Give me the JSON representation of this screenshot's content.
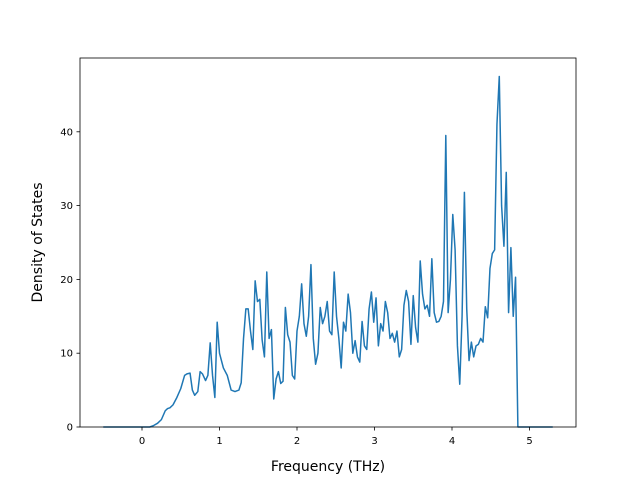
{
  "chart_data": {
    "type": "line",
    "title": "",
    "xlabel": "Frequency (THz)",
    "ylabel": "Density of States",
    "xlim": [
      -0.8,
      5.6
    ],
    "ylim": [
      0,
      50
    ],
    "xticks": [
      0,
      1,
      2,
      3,
      4,
      5
    ],
    "yticks": [
      0,
      10,
      20,
      30,
      40
    ],
    "grid": false,
    "legend": "none",
    "line_color": "#1f77b4",
    "series": [
      {
        "x": [
          -0.5,
          -0.3,
          -0.1,
          0.0,
          0.1,
          0.15,
          0.2,
          0.25,
          0.3,
          0.33,
          0.36,
          0.4,
          0.45,
          0.5,
          0.55,
          0.58,
          0.62,
          0.65,
          0.68,
          0.72,
          0.75,
          0.78,
          0.82,
          0.85,
          0.88,
          0.91,
          0.94,
          0.97,
          1.0,
          1.05,
          1.1,
          1.15,
          1.2,
          1.25,
          1.28,
          1.31,
          1.34,
          1.37,
          1.4,
          1.43,
          1.46,
          1.49,
          1.52,
          1.55,
          1.58,
          1.61,
          1.64,
          1.67,
          1.7,
          1.73,
          1.76,
          1.79,
          1.82,
          1.85,
          1.88,
          1.91,
          1.94,
          1.97,
          2.0,
          2.03,
          2.06,
          2.09,
          2.12,
          2.15,
          2.18,
          2.21,
          2.24,
          2.27,
          2.3,
          2.33,
          2.36,
          2.39,
          2.42,
          2.45,
          2.48,
          2.51,
          2.54,
          2.57,
          2.6,
          2.63,
          2.66,
          2.69,
          2.72,
          2.75,
          2.78,
          2.81,
          2.84,
          2.87,
          2.9,
          2.93,
          2.96,
          2.99,
          3.02,
          3.05,
          3.08,
          3.11,
          3.14,
          3.17,
          3.2,
          3.23,
          3.26,
          3.29,
          3.32,
          3.35,
          3.38,
          3.41,
          3.44,
          3.47,
          3.5,
          3.53,
          3.56,
          3.59,
          3.62,
          3.65,
          3.68,
          3.71,
          3.74,
          3.77,
          3.8,
          3.83,
          3.86,
          3.89,
          3.92,
          3.95,
          3.98,
          4.01,
          4.04,
          4.07,
          4.1,
          4.13,
          4.16,
          4.19,
          4.22,
          4.25,
          4.28,
          4.31,
          4.34,
          4.37,
          4.4,
          4.43,
          4.46,
          4.49,
          4.52,
          4.55,
          4.58,
          4.61,
          4.64,
          4.67,
          4.7,
          4.73,
          4.76,
          4.79,
          4.82,
          4.85,
          4.9,
          5.0,
          5.3
        ],
        "y": [
          0,
          0,
          0,
          0,
          0,
          0.2,
          0.5,
          1.0,
          2.2,
          2.5,
          2.6,
          3.0,
          4.0,
          5.2,
          7.0,
          7.2,
          7.3,
          5.0,
          4.3,
          4.8,
          7.5,
          7.2,
          6.3,
          7.0,
          11.4,
          7.0,
          4.0,
          14.2,
          10.0,
          8.0,
          7.0,
          5.0,
          4.8,
          5.0,
          6.0,
          12.0,
          16.0,
          16.0,
          13.0,
          10.5,
          19.8,
          17.0,
          17.3,
          11.8,
          9.5,
          21.0,
          12.0,
          13.2,
          3.8,
          6.5,
          7.5,
          5.9,
          6.2,
          16.2,
          12.5,
          11.5,
          7.0,
          6.5,
          13.0,
          15.0,
          19.4,
          14.0,
          12.3,
          15.0,
          22.0,
          12.0,
          8.5,
          10.0,
          16.2,
          14.0,
          15.0,
          17.0,
          13.0,
          12.5,
          21.0,
          15.0,
          12.0,
          8.0,
          14.2,
          13.0,
          18.0,
          15.5,
          10.0,
          11.7,
          9.5,
          8.8,
          14.3,
          11.0,
          10.5,
          16.0,
          18.3,
          14.2,
          17.5,
          11.0,
          14.0,
          13.0,
          17.0,
          15.5,
          12.0,
          12.7,
          11.5,
          13.0,
          9.5,
          10.5,
          16.5,
          18.5,
          17.0,
          11.2,
          17.8,
          13.5,
          11.5,
          22.5,
          18.0,
          16.0,
          16.5,
          15.0,
          22.8,
          15.5,
          14.2,
          14.3,
          15.0,
          17.0,
          39.5,
          15.5,
          20.0,
          28.8,
          24.0,
          11.0,
          5.8,
          15.0,
          31.8,
          16.0,
          9.0,
          11.5,
          9.5,
          11.0,
          11.2,
          12.0,
          11.5,
          16.3,
          14.8,
          21.5,
          23.5,
          24.0,
          41.0,
          47.5,
          30.0,
          24.5,
          34.5,
          15.5,
          24.3,
          15.0,
          20.3,
          0,
          0,
          0,
          0
        ]
      }
    ]
  }
}
